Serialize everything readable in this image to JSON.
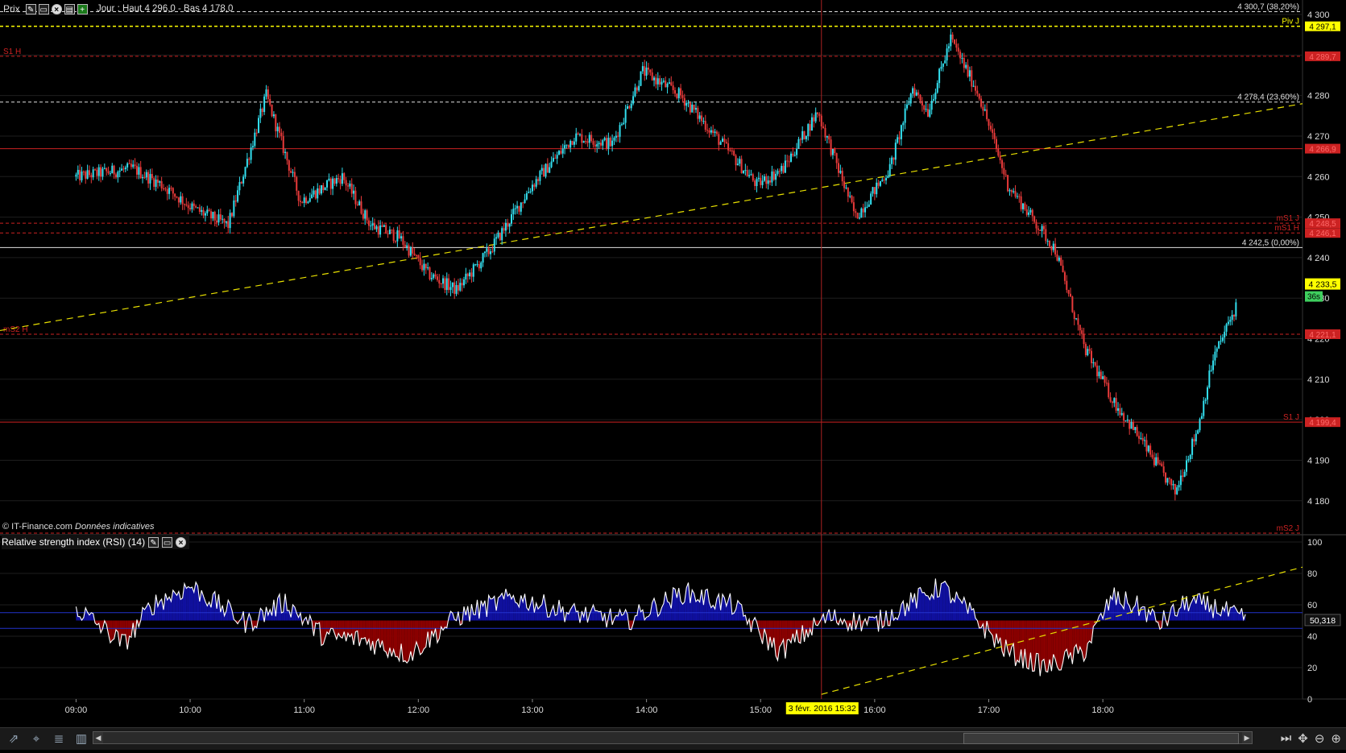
{
  "toolbar": {
    "label": "Prix",
    "header_text": "Jour : Haut 4 296,0 - Bas 4 178,0"
  },
  "credit": {
    "source": "© IT-Finance.com",
    "note": "Données indicatives"
  },
  "rsi_panel": {
    "title": "Relative strength index (RSI) (14)",
    "current_label": "50,318"
  },
  "crosshair_date": "3 févr. 2016 15:32",
  "countdown": "36s",
  "colors": {
    "background": "#000000",
    "bull": "#33e0f0",
    "bear": "#e83a3a",
    "pivot": "#ffff00",
    "support_resist": "#cc2222",
    "rsi_blue": "#1010a0",
    "rsi_red": "#8b0000",
    "trend": "#e8e000"
  },
  "chart_data": [
    {
      "type": "candlestick",
      "x_ticks": [
        "09:00",
        "10:00",
        "11:00",
        "12:00",
        "13:00",
        "14:00",
        "15:00",
        "16:00",
        "17:00",
        "18:00"
      ],
      "y_ticks": [
        "4 300",
        "4 290",
        "4 280",
        "4 270",
        "4 260",
        "4 250",
        "4 240",
        "4 230",
        "4 220",
        "4 210",
        "4 200",
        "4 190",
        "4 180"
      ],
      "ylim": [
        4172,
        4302
      ],
      "last_price": "4 233,5",
      "path_anchors": {
        "time_min": [
          0,
          30,
          45,
          62,
          80,
          100,
          118,
          140,
          155,
          170,
          185,
          200,
          218,
          240,
          262,
          282,
          298,
          318,
          340,
          358,
          372,
          390,
          410,
          428,
          440,
          448,
          460,
          475,
          490,
          515,
          530,
          545,
          560,
          578,
          590,
          598,
          610
        ],
        "price": [
          4260,
          4262,
          4258,
          4252,
          4248,
          4280,
          4254,
          4260,
          4248,
          4245,
          4236,
          4232,
          4242,
          4258,
          4270,
          4268,
          4286,
          4280,
          4268,
          4258,
          4262,
          4276,
          4250,
          4262,
          4282,
          4276,
          4294,
          4280,
          4258,
          4242,
          4218,
          4205,
          4195,
          4182,
          4198,
          4215,
          4228
        ]
      },
      "horizontal_levels": [
        {
          "value": 4300.7,
          "label": "4 300,7 (38,20%)",
          "style": "white-dash"
        },
        {
          "value": 4297.1,
          "label": "Piv J",
          "badge": "4 297,1",
          "style": "pivot"
        },
        {
          "value": 4289.7,
          "label": "S1 H",
          "badge": "4 289,7",
          "style": "red-dash"
        },
        {
          "value": 4278.4,
          "label": "4 278,4 (23,60%)",
          "style": "white-dash"
        },
        {
          "value": 4266.9,
          "badge": "4 266,9",
          "style": "red-solid"
        },
        {
          "value": 4248.5,
          "label": "mS1 J",
          "badge": "4 248,5",
          "style": "red-dash"
        },
        {
          "value": 4246.1,
          "label": "mS1 H",
          "badge": "4 246,1",
          "style": "red-dash"
        },
        {
          "value": 4242.5,
          "label": "4 242,5 (0,00%)",
          "style": "white-solid"
        },
        {
          "value": 4221.1,
          "label": "mS2 H",
          "badge": "4 221,1",
          "style": "red-dash"
        },
        {
          "value": 4199.4,
          "label": "S1 J",
          "badge": "4 199,4",
          "style": "red-solid"
        },
        {
          "value": 4172,
          "label": "mS2 J",
          "style": "red-dash"
        }
      ]
    },
    {
      "type": "area",
      "name": "Relative strength index (RSI) (14)",
      "y_ticks": [
        "100",
        "80",
        "60",
        "40",
        "20",
        "0"
      ],
      "ylim": [
        0,
        100
      ],
      "band": [
        45,
        55
      ],
      "last_value": 50.318,
      "path_anchors": {
        "time_min": [
          0,
          25,
          40,
          60,
          90,
          110,
          130,
          150,
          175,
          200,
          230,
          260,
          290,
          320,
          345,
          370,
          395,
          420,
          440,
          455,
          470,
          490,
          510,
          530,
          545,
          560,
          570,
          585,
          600,
          615
        ],
        "value": [
          58,
          35,
          60,
          72,
          48,
          62,
          40,
          38,
          28,
          52,
          65,
          55,
          50,
          68,
          60,
          30,
          52,
          48,
          62,
          72,
          55,
          30,
          20,
          30,
          65,
          58,
          48,
          62,
          58,
          50
        ]
      }
    }
  ]
}
